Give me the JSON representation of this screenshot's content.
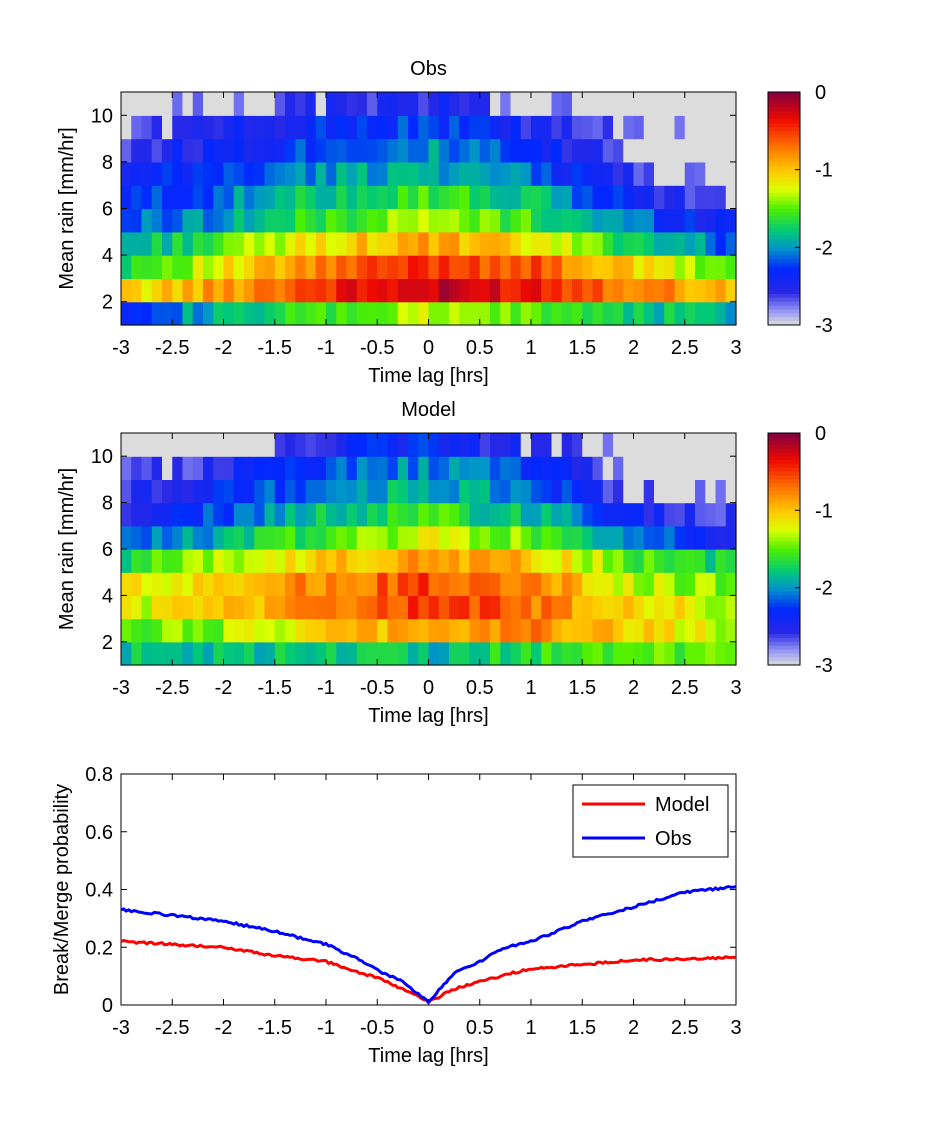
{
  "chart_data": [
    {
      "type": "heatmap",
      "title": "Obs",
      "xlabel": "Time lag [hrs]",
      "ylabel": "Mean rain [mm/hr]",
      "xlim": [
        -3,
        3
      ],
      "ylim": [
        1,
        11
      ],
      "xticks": [
        "-3",
        "-2.5",
        "-2",
        "-1.5",
        "-1",
        "-0.5",
        "0",
        "0.5",
        "1",
        "1.5",
        "2",
        "2.5",
        "3"
      ],
      "yticks": [
        "2",
        "4",
        "6",
        "8",
        "10"
      ],
      "rows": [
        1.5,
        2.5,
        3.5,
        4.5,
        5.5,
        6.5,
        7.5,
        8.5,
        9.5,
        10.5
      ],
      "value_description": "log10 probability",
      "row_profiles": {
        "x_points": [
          -3,
          -2,
          -1,
          0,
          1,
          2,
          3
        ],
        "values": [
          [
            -2.2,
            -1.9,
            -1.6,
            -1.35,
            -1.5,
            -1.75,
            -1.9
          ],
          [
            -1.15,
            -0.85,
            -0.45,
            -0.25,
            -0.35,
            -0.7,
            -1.0
          ],
          [
            -1.65,
            -1.2,
            -0.75,
            -0.45,
            -0.6,
            -1.1,
            -1.55
          ],
          [
            -1.95,
            -1.55,
            -1.1,
            -0.9,
            -1.15,
            -1.7,
            -2.2
          ],
          [
            -2.2,
            -1.95,
            -1.6,
            -1.35,
            -1.6,
            -2.1,
            -2.5
          ],
          [
            -2.35,
            -2.1,
            -1.75,
            -1.55,
            -1.85,
            -2.4,
            -2.8
          ],
          [
            -2.5,
            -2.25,
            -2.0,
            -1.85,
            -2.15,
            -2.6,
            -3.0
          ],
          [
            -2.6,
            -2.4,
            -2.15,
            -2.0,
            -2.35,
            -2.75,
            -3.0
          ],
          [
            -2.75,
            -2.55,
            -2.3,
            -2.2,
            -2.5,
            -2.85,
            -3.0
          ],
          [
            -3.0,
            -2.8,
            -2.6,
            -2.5,
            -2.75,
            -3.0,
            -3.0
          ]
        ]
      },
      "colorbar": {
        "min": -3,
        "max": 0,
        "ticks": [
          "0",
          "-1",
          "-2",
          "-3"
        ]
      }
    },
    {
      "type": "heatmap",
      "title": "Model",
      "xlabel": "Time lag [hrs]",
      "ylabel": "Mean rain [mm/hr]",
      "xlim": [
        -3,
        3
      ],
      "ylim": [
        1,
        11
      ],
      "xticks": [
        "-3",
        "-2.5",
        "-2",
        "-1.5",
        "-1",
        "-0.5",
        "0",
        "0.5",
        "1",
        "1.5",
        "2",
        "2.5",
        "3"
      ],
      "yticks": [
        "2",
        "4",
        "6",
        "8",
        "10"
      ],
      "rows": [
        1.5,
        2.5,
        3.5,
        4.5,
        5.5,
        6.5,
        7.5,
        8.5,
        9.5,
        10.5
      ],
      "value_description": "log10 probability",
      "row_profiles": {
        "x_points": [
          -3,
          -2,
          -1,
          0,
          1,
          2,
          3
        ],
        "values": [
          [
            -1.85,
            -1.8,
            -1.8,
            -1.85,
            -1.65,
            -1.55,
            -1.55
          ],
          [
            -1.55,
            -1.4,
            -1.1,
            -0.85,
            -0.75,
            -1.05,
            -1.35
          ],
          [
            -1.3,
            -1.05,
            -0.8,
            -0.5,
            -0.7,
            -1.05,
            -1.35
          ],
          [
            -1.25,
            -1.0,
            -0.75,
            -0.55,
            -0.75,
            -1.3,
            -1.5
          ],
          [
            -1.7,
            -1.35,
            -1.05,
            -0.8,
            -1.0,
            -1.5,
            -1.75
          ],
          [
            -2.25,
            -1.9,
            -1.5,
            -1.25,
            -1.5,
            -2.05,
            -2.5
          ],
          [
            -2.45,
            -2.15,
            -1.8,
            -1.6,
            -1.85,
            -2.4,
            -2.7
          ],
          [
            -2.55,
            -2.35,
            -2.0,
            -1.85,
            -2.1,
            -2.75,
            -2.9
          ],
          [
            -2.7,
            -2.55,
            -2.2,
            -2.0,
            -2.3,
            -2.9,
            -3.0
          ],
          [
            -3.0,
            -3.0,
            -2.45,
            -2.3,
            -2.6,
            -3.0,
            -3.0
          ]
        ]
      },
      "colorbar": {
        "min": -3,
        "max": 0,
        "ticks": [
          "0",
          "-1",
          "-2",
          "-3"
        ]
      }
    },
    {
      "type": "line",
      "title": "",
      "xlabel": "Time lag [hrs]",
      "ylabel": "Break/Merge probability",
      "xlim": [
        -3,
        3
      ],
      "ylim": [
        0,
        0.8
      ],
      "xticks": [
        "-3",
        "-2.5",
        "-2",
        "-1.5",
        "-1",
        "-0.5",
        "0",
        "0.5",
        "1",
        "1.5",
        "2",
        "2.5",
        "3"
      ],
      "yticks": [
        "0",
        "0.2",
        "0.4",
        "0.6",
        "0.8"
      ],
      "legend_position": "top-right",
      "x": [
        -3,
        -2.5,
        -2,
        -1.5,
        -1,
        -0.75,
        -0.5,
        -0.25,
        0,
        0.25,
        0.5,
        0.75,
        1,
        1.5,
        2,
        2.5,
        3
      ],
      "series": [
        {
          "name": "Model",
          "color": "#ff0000",
          "values": [
            0.22,
            0.21,
            0.2,
            0.17,
            0.15,
            0.12,
            0.095,
            0.055,
            0.01,
            0.055,
            0.08,
            0.105,
            0.125,
            0.14,
            0.155,
            0.16,
            0.165
          ]
        },
        {
          "name": "Obs",
          "color": "#0000ff",
          "values": [
            0.33,
            0.31,
            0.29,
            0.255,
            0.21,
            0.17,
            0.12,
            0.08,
            0.01,
            0.11,
            0.15,
            0.2,
            0.22,
            0.29,
            0.34,
            0.39,
            0.41
          ]
        }
      ]
    }
  ]
}
